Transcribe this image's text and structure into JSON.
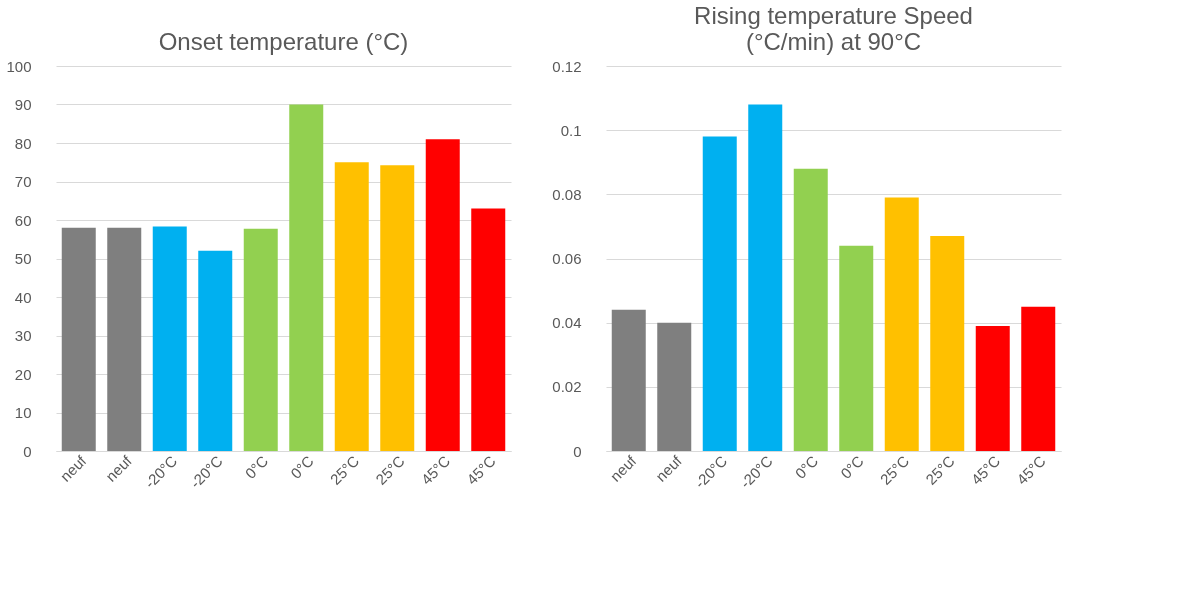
{
  "chart_data": [
    {
      "type": "bar",
      "title": "Onset temperature (°C)",
      "categories": [
        "neuf",
        "neuf",
        "-20°C",
        "-20°C",
        "0°C",
        "0°C",
        "25°C",
        "25°C",
        "45°C",
        "45°C"
      ],
      "values": [
        58,
        58,
        58.3,
        52,
        57.7,
        90,
        75,
        74.2,
        81,
        63
      ],
      "colors": [
        "#7f7f7f",
        "#7f7f7f",
        "#00b0f0",
        "#00b0f0",
        "#92d050",
        "#92d050",
        "#ffc000",
        "#ffc000",
        "#ff0000",
        "#ff0000"
      ],
      "ylim": [
        0,
        100
      ],
      "yticks": [
        0,
        10,
        20,
        30,
        40,
        50,
        60,
        70,
        80,
        90,
        100
      ],
      "grid": "y"
    },
    {
      "type": "bar",
      "title": "Rising temperature Speed (°C/min) at 90°C",
      "categories": [
        "neuf",
        "neuf",
        "-20°C",
        "-20°C",
        "0°C",
        "0°C",
        "25°C",
        "25°C",
        "45°C",
        "45°C"
      ],
      "values": [
        0.044,
        0.04,
        0.098,
        0.108,
        0.088,
        0.064,
        0.079,
        0.067,
        0.039,
        0.045
      ],
      "colors": [
        "#7f7f7f",
        "#7f7f7f",
        "#00b0f0",
        "#00b0f0",
        "#92d050",
        "#92d050",
        "#ffc000",
        "#ffc000",
        "#ff0000",
        "#ff0000"
      ],
      "ylim": [
        0,
        0.12
      ],
      "yticks": [
        0,
        0.02,
        0.04,
        0.06,
        0.08,
        0.1,
        0.12
      ],
      "grid": "y"
    }
  ]
}
